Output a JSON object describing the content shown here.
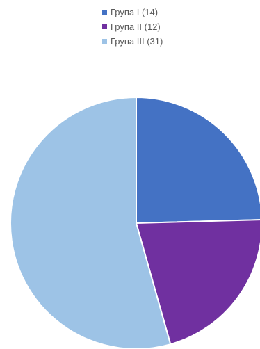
{
  "chart_data": {
    "type": "pie",
    "title": "",
    "categories": [
      "Група I (14)",
      "Група II (12)",
      "Група III (31)"
    ],
    "values": [
      14,
      12,
      31
    ],
    "colors": [
      "#4472c4",
      "#7030a0",
      "#9dc3e6"
    ],
    "start_angle": "12 o'clock",
    "direction": "clockwise",
    "legend_position": "top"
  }
}
